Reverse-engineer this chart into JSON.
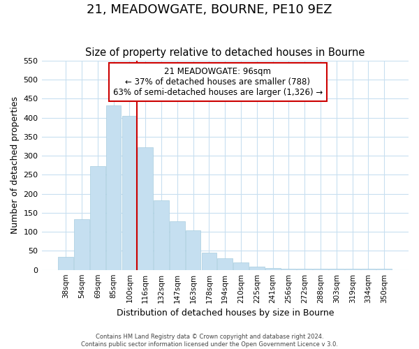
{
  "title": "21, MEADOWGATE, BOURNE, PE10 9EZ",
  "subtitle": "Size of property relative to detached houses in Bourne",
  "xlabel": "Distribution of detached houses by size in Bourne",
  "ylabel": "Number of detached properties",
  "footer_line1": "Contains HM Land Registry data © Crown copyright and database right 2024.",
  "footer_line2": "Contains public sector information licensed under the Open Government Licence v 3.0.",
  "bar_labels": [
    "38sqm",
    "54sqm",
    "69sqm",
    "85sqm",
    "100sqm",
    "116sqm",
    "132sqm",
    "147sqm",
    "163sqm",
    "178sqm",
    "194sqm",
    "210sqm",
    "225sqm",
    "241sqm",
    "256sqm",
    "272sqm",
    "288sqm",
    "303sqm",
    "319sqm",
    "334sqm",
    "350sqm"
  ],
  "bar_values": [
    35,
    133,
    272,
    433,
    405,
    322,
    183,
    127,
    104,
    46,
    30,
    20,
    8,
    5,
    3,
    3,
    3,
    3,
    3,
    3,
    3
  ],
  "bar_color": "#c5dff0",
  "bar_edge_color": "#a8cde0",
  "highlight_bar_index": 4,
  "highlight_line_color": "#cc0000",
  "annotation_title": "21 MEADOWGATE: 96sqm",
  "annotation_line1": "← 37% of detached houses are smaller (788)",
  "annotation_line2": "63% of semi-detached houses are larger (1,326) →",
  "annotation_box_color": "#ffffff",
  "annotation_box_edge": "#cc0000",
  "ylim": [
    0,
    550
  ],
  "yticks": [
    0,
    50,
    100,
    150,
    200,
    250,
    300,
    350,
    400,
    450,
    500,
    550
  ],
  "background_color": "#ffffff",
  "grid_color": "#c8dff0",
  "title_fontsize": 13,
  "subtitle_fontsize": 10.5
}
